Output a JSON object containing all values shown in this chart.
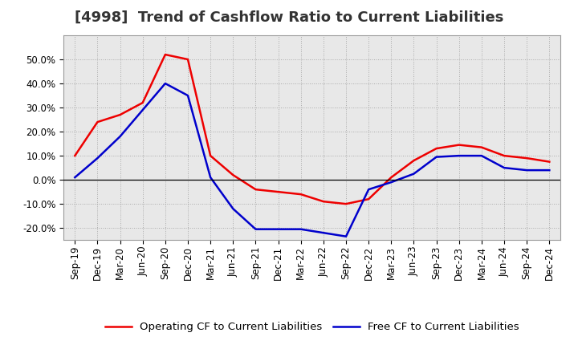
{
  "title": "[4998]  Trend of Cashflow Ratio to Current Liabilities",
  "x_labels": [
    "Sep-19",
    "Dec-19",
    "Mar-20",
    "Jun-20",
    "Sep-20",
    "Dec-20",
    "Mar-21",
    "Jun-21",
    "Sep-21",
    "Dec-21",
    "Mar-22",
    "Jun-22",
    "Sep-22",
    "Dec-22",
    "Mar-23",
    "Jun-23",
    "Sep-23",
    "Dec-23",
    "Mar-24",
    "Jun-24",
    "Sep-24",
    "Dec-24"
  ],
  "operating_cf": [
    0.1,
    0.24,
    0.27,
    0.32,
    0.52,
    0.5,
    0.1,
    0.02,
    -0.04,
    -0.05,
    -0.06,
    -0.09,
    -0.1,
    -0.08,
    0.01,
    0.08,
    0.13,
    0.145,
    0.135,
    0.1,
    0.09,
    0.075
  ],
  "free_cf": [
    0.01,
    0.09,
    0.18,
    0.29,
    0.4,
    0.35,
    0.01,
    -0.12,
    -0.205,
    -0.205,
    -0.205,
    -0.22,
    -0.235,
    -0.04,
    -0.01,
    0.025,
    0.095,
    0.1,
    0.1,
    0.05,
    0.04,
    0.04
  ],
  "operating_color": "#ee0000",
  "free_color": "#0000cc",
  "background_color": "#ffffff",
  "plot_bg_color": "#e8e8e8",
  "grid_color": "#aaaaaa",
  "ylim_min": -0.25,
  "ylim_max": 0.6,
  "yticks": [
    -0.2,
    -0.1,
    0.0,
    0.1,
    0.2,
    0.3,
    0.4,
    0.5
  ],
  "legend_op": "Operating CF to Current Liabilities",
  "legend_free": "Free CF to Current Liabilities",
  "title_fontsize": 13,
  "tick_fontsize": 8.5,
  "legend_fontsize": 9.5
}
